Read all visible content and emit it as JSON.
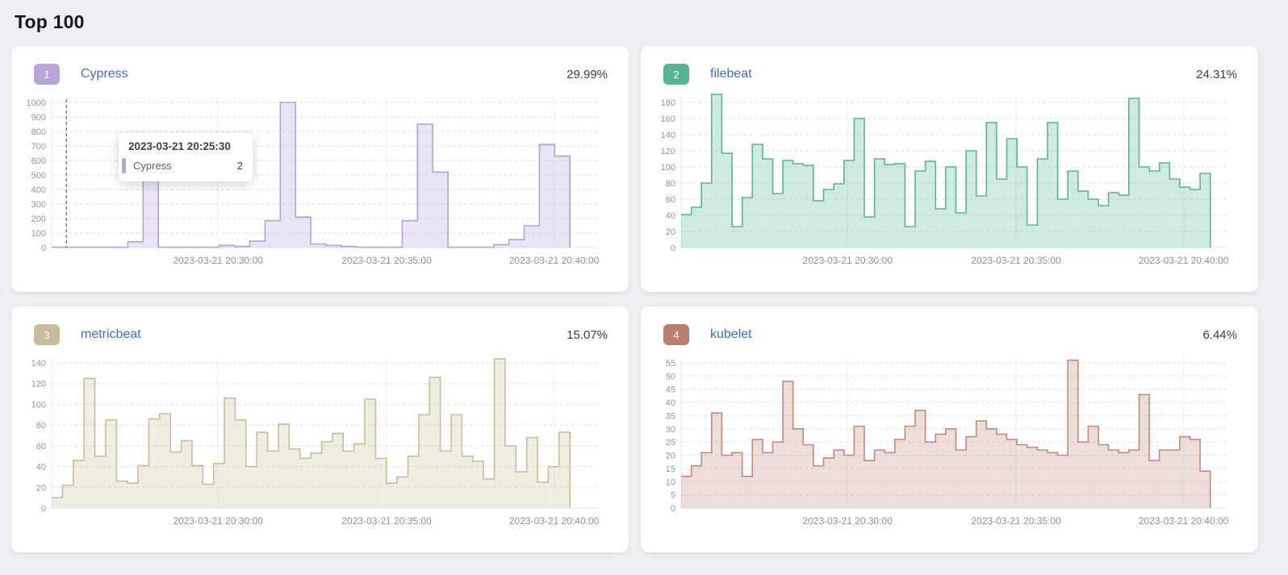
{
  "page": {
    "title": "Top 100"
  },
  "chart_data": [
    {
      "type": "area",
      "step": true,
      "rank": "1",
      "title": "Cypress",
      "percent": "29.99%",
      "x_tick_labels": [
        "2023-03-21 20:30:00",
        "2023-03-21 20:35:00",
        "2023-03-21 20:40:00"
      ],
      "y_ticks": [
        0,
        100,
        200,
        300,
        400,
        500,
        600,
        700,
        800,
        900,
        1000
      ],
      "ylim": [
        0,
        1000
      ],
      "legend_position": "none",
      "grid": "dashed-horizontal",
      "values": [
        2,
        2,
        2,
        2,
        2,
        40,
        500,
        2,
        2,
        2,
        2,
        15,
        8,
        45,
        185,
        1000,
        210,
        25,
        15,
        8,
        2,
        2,
        2,
        185,
        850,
        520,
        2,
        2,
        2,
        20,
        55,
        150,
        710,
        630
      ],
      "colors": {
        "line": "#b3a2d7",
        "fill": "rgba(179,162,215,0.28)",
        "badge": "#b7a5d9"
      },
      "tooltip": {
        "time": "2023-03-21 20:25:30",
        "series": "Cypress",
        "value": "2"
      },
      "crosshair_fraction": 0.027
    },
    {
      "type": "area",
      "step": true,
      "rank": "2",
      "title": "filebeat",
      "percent": "24.31%",
      "x_tick_labels": [
        "2023-03-21 20:30:00",
        "2023-03-21 20:35:00",
        "2023-03-21 20:40:00"
      ],
      "y_ticks": [
        0,
        20,
        40,
        60,
        80,
        100,
        120,
        140,
        160,
        180
      ],
      "ylim": [
        0,
        190
      ],
      "legend_position": "none",
      "grid": "dashed-horizontal",
      "values": [
        41,
        50,
        80,
        190,
        117,
        26,
        62,
        128,
        110,
        67,
        108,
        104,
        102,
        58,
        72,
        79,
        108,
        160,
        38,
        110,
        103,
        104,
        26,
        95,
        107,
        48,
        100,
        43,
        120,
        64,
        155,
        85,
        135,
        100,
        28,
        110,
        155,
        60,
        95,
        70,
        60,
        52,
        68,
        65,
        185,
        100,
        95,
        105,
        85,
        75,
        72,
        92
      ],
      "colors": {
        "line": "#54b695",
        "fill": "rgba(84,182,149,0.28)",
        "badge": "#55b593"
      }
    },
    {
      "type": "area",
      "step": true,
      "rank": "3",
      "title": "metricbeat",
      "percent": "15.07%",
      "x_tick_labels": [
        "2023-03-21 20:30:00",
        "2023-03-21 20:35:00",
        "2023-03-21 20:40:00"
      ],
      "y_ticks": [
        0,
        20,
        40,
        60,
        80,
        100,
        120,
        140
      ],
      "ylim": [
        0,
        145
      ],
      "legend_position": "none",
      "grid": "dashed-horizontal",
      "values": [
        10,
        22,
        46,
        125,
        50,
        85,
        26,
        24,
        41,
        86,
        91,
        54,
        65,
        41,
        23,
        43,
        106,
        85,
        40,
        73,
        55,
        81,
        57,
        48,
        53,
        64,
        72,
        55,
        62,
        105,
        48,
        24,
        30,
        50,
        90,
        126,
        55,
        90,
        50,
        45,
        28,
        144,
        60,
        35,
        68,
        25,
        40,
        73
      ],
      "colors": {
        "line": "#c9bd9c",
        "fill": "rgba(201,189,156,0.28)",
        "badge": "#c7bb9c"
      }
    },
    {
      "type": "area",
      "step": true,
      "rank": "4",
      "title": "kubelet",
      "percent": "6.44%",
      "x_tick_labels": [
        "2023-03-21 20:30:00",
        "2023-03-21 20:35:00",
        "2023-03-21 20:40:00"
      ],
      "y_ticks": [
        0,
        5,
        10,
        15,
        20,
        25,
        30,
        35,
        40,
        45,
        50,
        55
      ],
      "ylim": [
        0,
        56
      ],
      "legend_position": "none",
      "grid": "dashed-horizontal",
      "values": [
        12,
        16,
        21,
        36,
        20,
        21,
        12,
        26,
        21,
        25,
        48,
        30,
        24,
        16,
        19,
        22,
        20,
        31,
        18,
        22,
        21,
        26,
        31,
        37,
        25,
        28,
        30,
        22,
        27,
        33,
        30,
        28,
        26,
        24,
        23,
        22,
        21,
        20,
        56,
        25,
        31,
        24,
        22,
        21,
        22,
        43,
        18,
        22,
        22,
        27,
        26,
        14
      ],
      "colors": {
        "line": "#c08a7a",
        "fill": "rgba(192,138,122,0.28)",
        "badge": "#b98070"
      }
    }
  ]
}
